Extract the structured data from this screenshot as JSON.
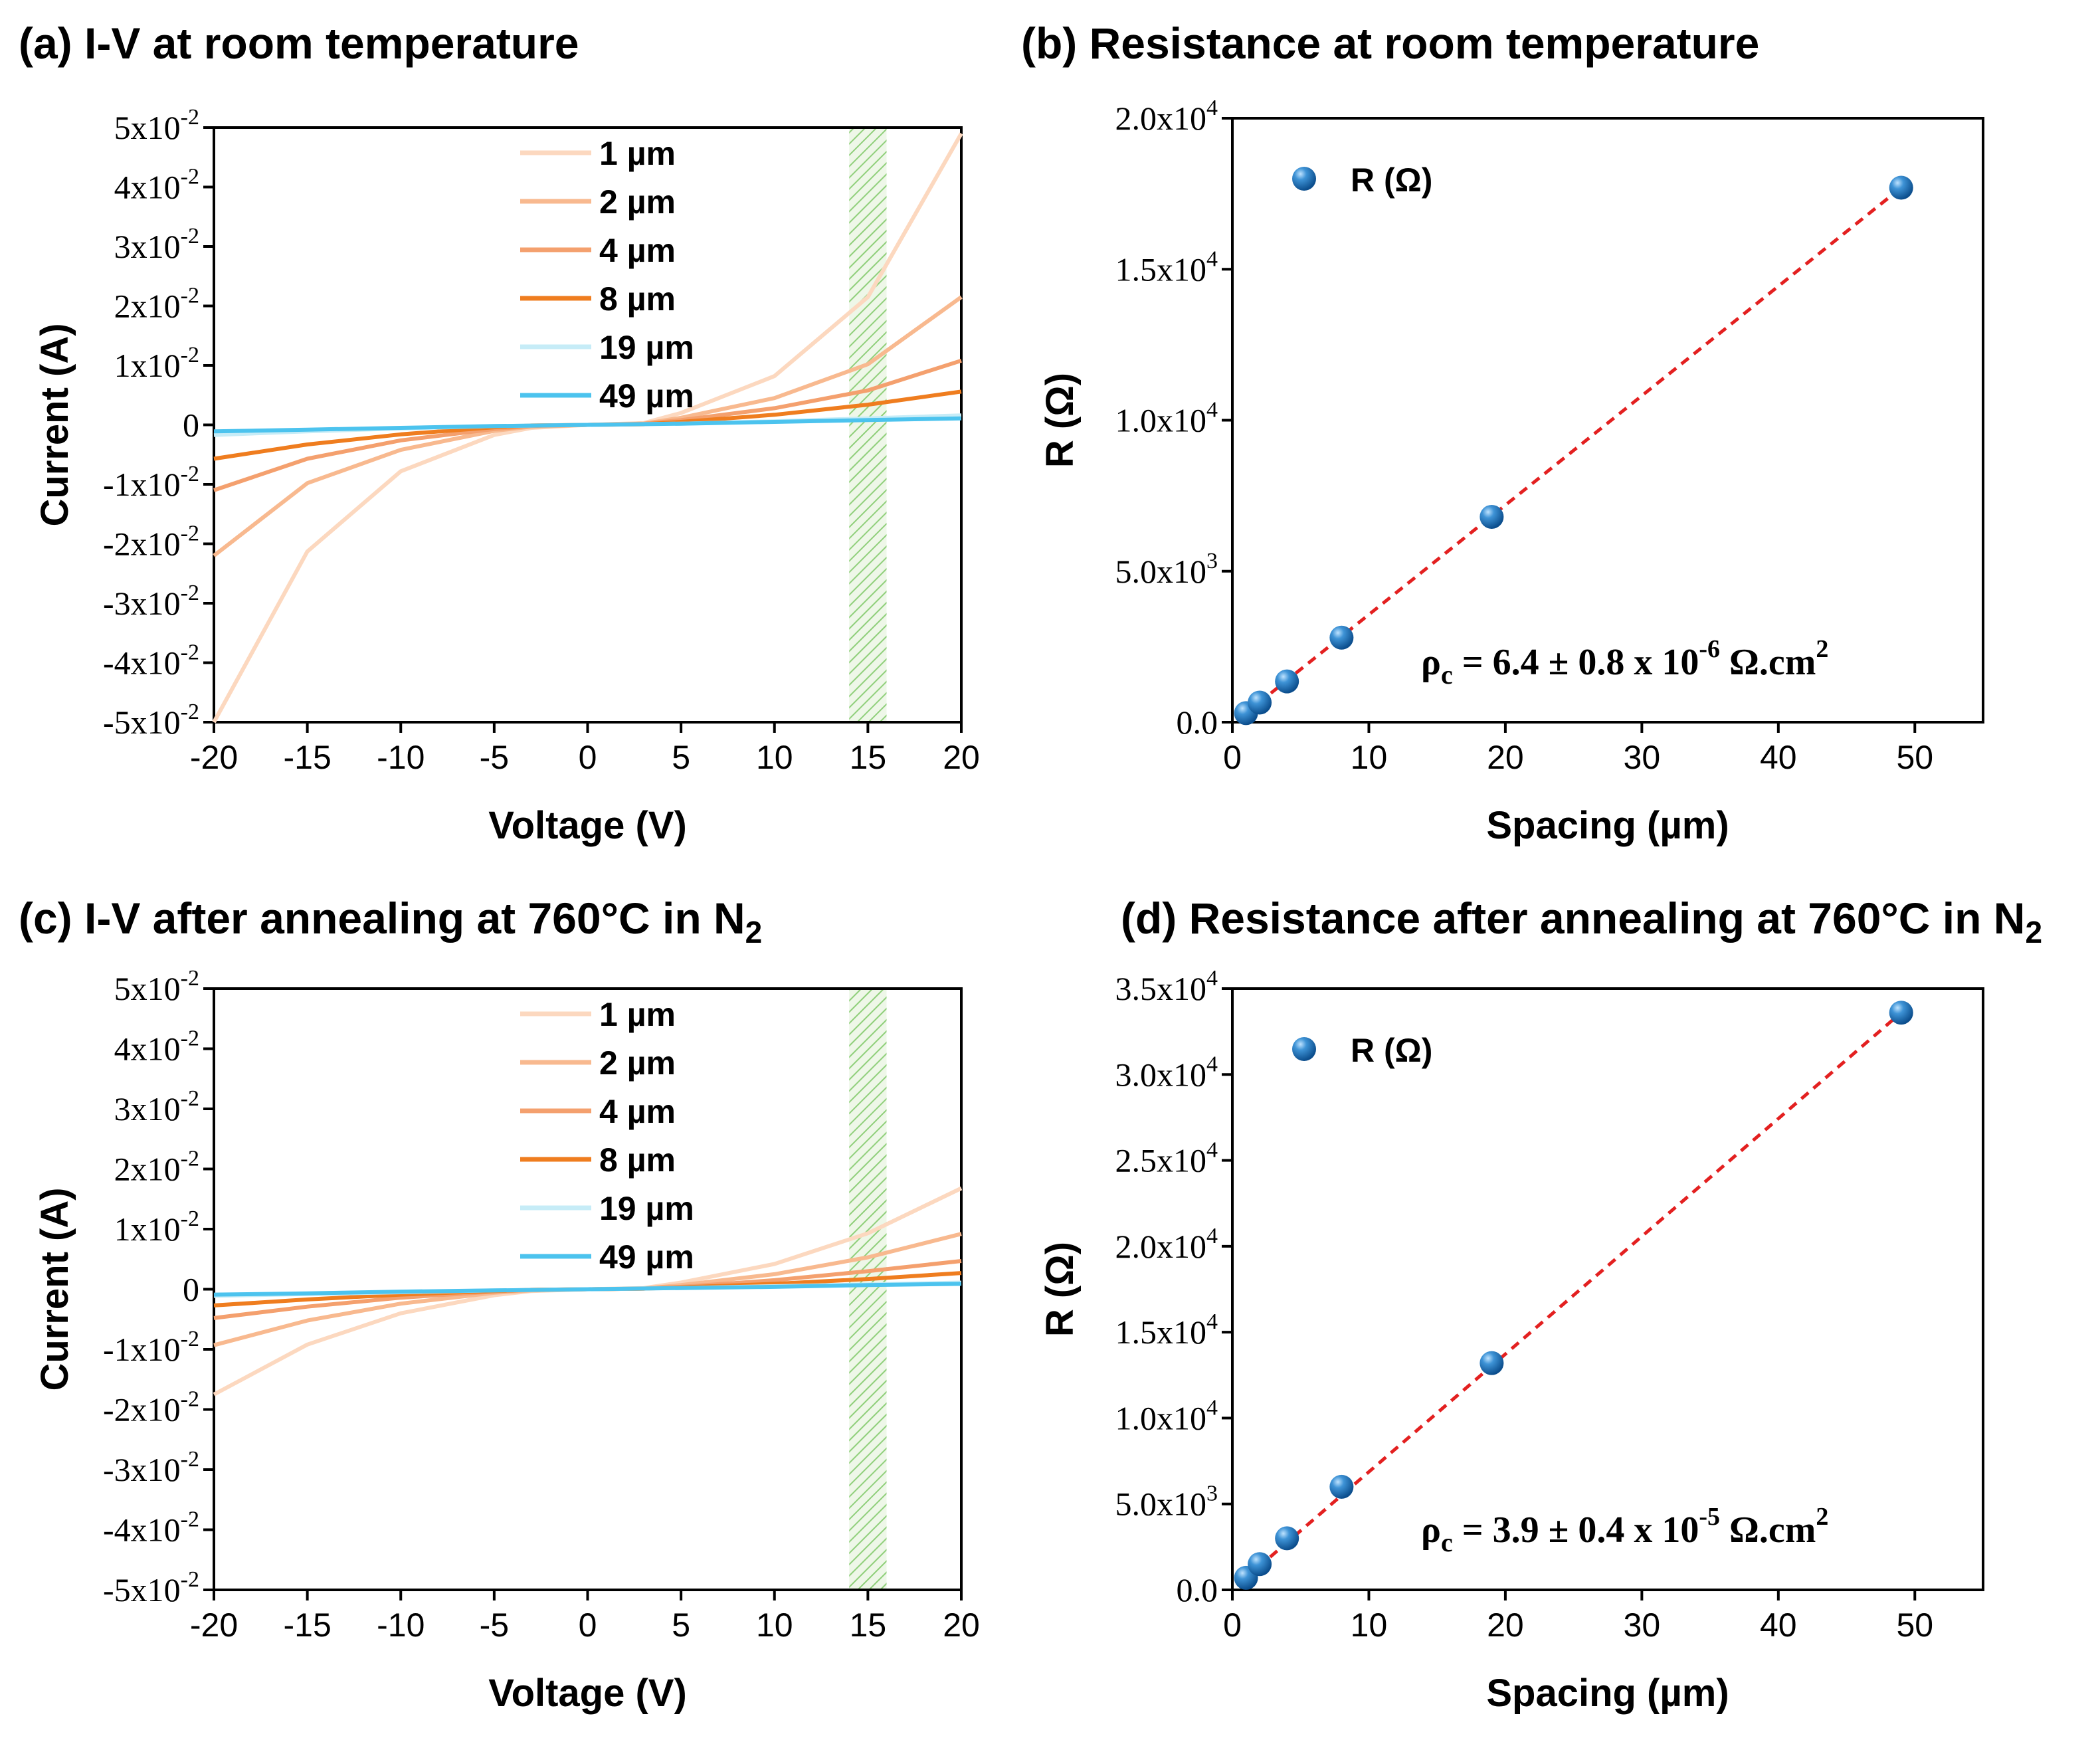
{
  "chart_data": [
    {
      "id": "a",
      "type": "line",
      "title": "(a) I-V at room temperature",
      "xlabel": "Voltage (V)",
      "ylabel": "Current (A)",
      "xlim": [
        -20,
        20
      ],
      "ylim": [
        -0.05,
        0.05
      ],
      "xticks": [
        "-20",
        "-15",
        "-10",
        "-5",
        "0",
        "5",
        "10",
        "15",
        "20"
      ],
      "yticks": [
        "5x10-2",
        "4x10-2",
        "3x10-2",
        "2x10-2",
        "1x10-2",
        "0",
        "-1x10-2",
        "-2x10-2",
        "-3x10-2",
        "-4x10-2",
        "-5x10-2"
      ],
      "shaded_band": [
        14,
        16
      ],
      "series": [
        {
          "name": "1 µm",
          "color": "#fcd8bf",
          "values": {
            "x": [
              -20,
              -15,
              -10,
              -5,
              -3,
              0,
              3,
              5,
              10,
              15,
              20
            ],
            "y": [
              -0.05,
              -0.0213,
              -0.0078,
              -0.0017,
              -0.0005,
              0,
              0.0003,
              0.002,
              0.0082,
              0.0215,
              0.049
            ]
          }
        },
        {
          "name": "2 µm",
          "color": "#f8b98f",
          "values": {
            "x": [
              -20,
              -15,
              -10,
              -5,
              -3,
              0,
              3,
              5,
              10,
              15,
              20
            ],
            "y": [
              -0.022,
              -0.0098,
              -0.0042,
              -0.001,
              -0.0003,
              0,
              0.0002,
              0.0012,
              0.0045,
              0.0102,
              0.0215
            ]
          }
        },
        {
          "name": "4 µm",
          "color": "#f4a06e",
          "values": {
            "x": [
              -20,
              -15,
              -10,
              -5,
              -3,
              0,
              3,
              5,
              10,
              15,
              20
            ],
            "y": [
              -0.011,
              -0.0057,
              -0.0026,
              -0.0007,
              -0.0002,
              0,
              0.0002,
              0.0008,
              0.0028,
              0.0058,
              0.0108
            ]
          }
        },
        {
          "name": "8 µm",
          "color": "#ef7d1f",
          "values": {
            "x": [
              -20,
              -15,
              -10,
              -5,
              -3,
              0,
              3,
              5,
              10,
              15,
              20
            ],
            "y": [
              -0.0057,
              -0.0033,
              -0.0016,
              -0.0004,
              -0.0001,
              0,
              0.0001,
              0.0005,
              0.0017,
              0.0034,
              0.0056
            ]
          }
        },
        {
          "name": "19 µm",
          "color": "#c6ecf7",
          "values": {
            "x": [
              -20,
              -15,
              -10,
              -5,
              0,
              5,
              10,
              15,
              20
            ],
            "y": [
              -0.0017,
              -0.0011,
              -0.0006,
              -0.0002,
              0,
              0.0002,
              0.0006,
              0.0011,
              0.0016
            ]
          }
        },
        {
          "name": "49 µm",
          "color": "#4cc3ee",
          "values": {
            "x": [
              -20,
              -15,
              -10,
              -5,
              0,
              5,
              10,
              15,
              20
            ],
            "y": [
              -0.0011,
              -0.0008,
              -0.0005,
              -0.0002,
              0,
              0.0002,
              0.0005,
              0.0008,
              0.0011
            ]
          }
        }
      ]
    },
    {
      "id": "b",
      "type": "scatter",
      "title": "(b) Resistance at room temperature",
      "xlabel": "Spacing (µm)",
      "ylabel": "R (Ω)",
      "xlim": [
        0,
        55
      ],
      "ylim": [
        0,
        20000
      ],
      "xticks": [
        "0",
        "10",
        "20",
        "30",
        "40",
        "50"
      ],
      "yticks": [
        "2.0x104",
        "1.5x104",
        "1.0x104",
        "5.0x103",
        "0.0"
      ],
      "series": [
        {
          "name": "R (Ω)",
          "color": "#1a6fb5",
          "x": [
            1,
            2,
            4,
            8,
            19,
            49
          ],
          "y": [
            300,
            650,
            1350,
            2800,
            6800,
            17700
          ]
        }
      ],
      "fit_line": {
        "color": "#e32020",
        "x": [
          1,
          49
        ],
        "y": [
          300,
          17700
        ]
      },
      "annotation": {
        "prefix": "ρ",
        "sub": "c",
        "text": " = 6.4 ± 0.8 x 10",
        "exp": "-6",
        "unit": " Ω.cm",
        "unit_exp": "2"
      }
    },
    {
      "id": "c",
      "type": "line",
      "title": "(c) I-V after annealing at 760°C in N",
      "title_sub": "2",
      "xlabel": "Voltage (V)",
      "ylabel": "Current (A)",
      "xlim": [
        -20,
        20
      ],
      "ylim": [
        -0.05,
        0.05
      ],
      "xticks": [
        "-20",
        "-15",
        "-10",
        "-5",
        "0",
        "5",
        "10",
        "15",
        "20"
      ],
      "yticks": [
        "5x10-2",
        "4x10-2",
        "3x10-2",
        "2x10-2",
        "1x10-2",
        "0",
        "-1x10-2",
        "-2x10-2",
        "-3x10-2",
        "-4x10-2",
        "-5x10-2"
      ],
      "shaded_band": [
        14,
        16
      ],
      "series": [
        {
          "name": "1 µm",
          "color": "#fcd8bf",
          "values": {
            "x": [
              -20,
              -15,
              -10,
              -5,
              -3,
              0,
              3,
              5,
              10,
              15,
              20
            ],
            "y": [
              -0.0175,
              -0.0092,
              -0.004,
              -0.001,
              -0.0003,
              0,
              0.0002,
              0.0011,
              0.0042,
              0.0093,
              0.0168
            ]
          }
        },
        {
          "name": "2 µm",
          "color": "#f8b98f",
          "values": {
            "x": [
              -20,
              -15,
              -10,
              -5,
              -3,
              0,
              3,
              5,
              10,
              15,
              20
            ],
            "y": [
              -0.0093,
              -0.0052,
              -0.0024,
              -0.0006,
              -0.0002,
              0,
              0.0001,
              0.0007,
              0.0025,
              0.0053,
              0.0092
            ]
          }
        },
        {
          "name": "4 µm",
          "color": "#f4a06e",
          "values": {
            "x": [
              -20,
              -15,
              -10,
              -5,
              -3,
              0,
              3,
              5,
              10,
              15,
              20
            ],
            "y": [
              -0.0048,
              -0.0029,
              -0.0014,
              -0.0004,
              -0.0001,
              0,
              0.0001,
              0.0004,
              0.0015,
              0.003,
              0.0047
            ]
          }
        },
        {
          "name": "8 µm",
          "color": "#ef7d1f",
          "values": {
            "x": [
              -20,
              -15,
              -10,
              -5,
              -3,
              0,
              3,
              5,
              10,
              15,
              20
            ],
            "y": [
              -0.0027,
              -0.0017,
              -0.0009,
              -0.0003,
              -0.0001,
              0,
              0.0001,
              0.0003,
              0.0009,
              0.0017,
              0.0027
            ]
          }
        },
        {
          "name": "19 µm",
          "color": "#c6ecf7",
          "values": {
            "x": [
              -20,
              -15,
              -10,
              -5,
              0,
              5,
              10,
              15,
              20
            ],
            "y": [
              -0.0011,
              -0.0008,
              -0.0005,
              -0.0002,
              0,
              0.0002,
              0.0005,
              0.0008,
              0.0011
            ]
          }
        },
        {
          "name": "49 µm",
          "color": "#4cc3ee",
          "values": {
            "x": [
              -20,
              -15,
              -10,
              -5,
              0,
              5,
              10,
              15,
              20
            ],
            "y": [
              -0.0009,
              -0.0007,
              -0.0004,
              -0.0002,
              0,
              0.0002,
              0.0004,
              0.0007,
              0.0009
            ]
          }
        }
      ]
    },
    {
      "id": "d",
      "type": "scatter",
      "title": "(d) Resistance after annealing at 760°C in N",
      "title_sub": "2",
      "xlabel": "Spacing (µm)",
      "ylabel": "R (Ω)",
      "xlim": [
        0,
        55
      ],
      "ylim": [
        0,
        35000
      ],
      "xticks": [
        "0",
        "10",
        "20",
        "30",
        "40",
        "50"
      ],
      "yticks": [
        "3.5x104",
        "3.0x104",
        "2.5x104",
        "2.0x104",
        "1.5x104",
        "1.0x104",
        "5.0x103",
        "0.0"
      ],
      "series": [
        {
          "name": "R (Ω)",
          "color": "#1a6fb5",
          "x": [
            1,
            2,
            4,
            8,
            19,
            49
          ],
          "y": [
            700,
            1500,
            3000,
            6000,
            13200,
            33600
          ]
        }
      ],
      "fit_line": {
        "color": "#e32020",
        "x": [
          1,
          49
        ],
        "y": [
          700,
          33600
        ]
      },
      "annotation": {
        "prefix": "ρ",
        "sub": "c",
        "text": " = 3.9 ± 0.4 x 10",
        "exp": "-5",
        "unit": " Ω.cm",
        "unit_exp": "2"
      }
    }
  ]
}
